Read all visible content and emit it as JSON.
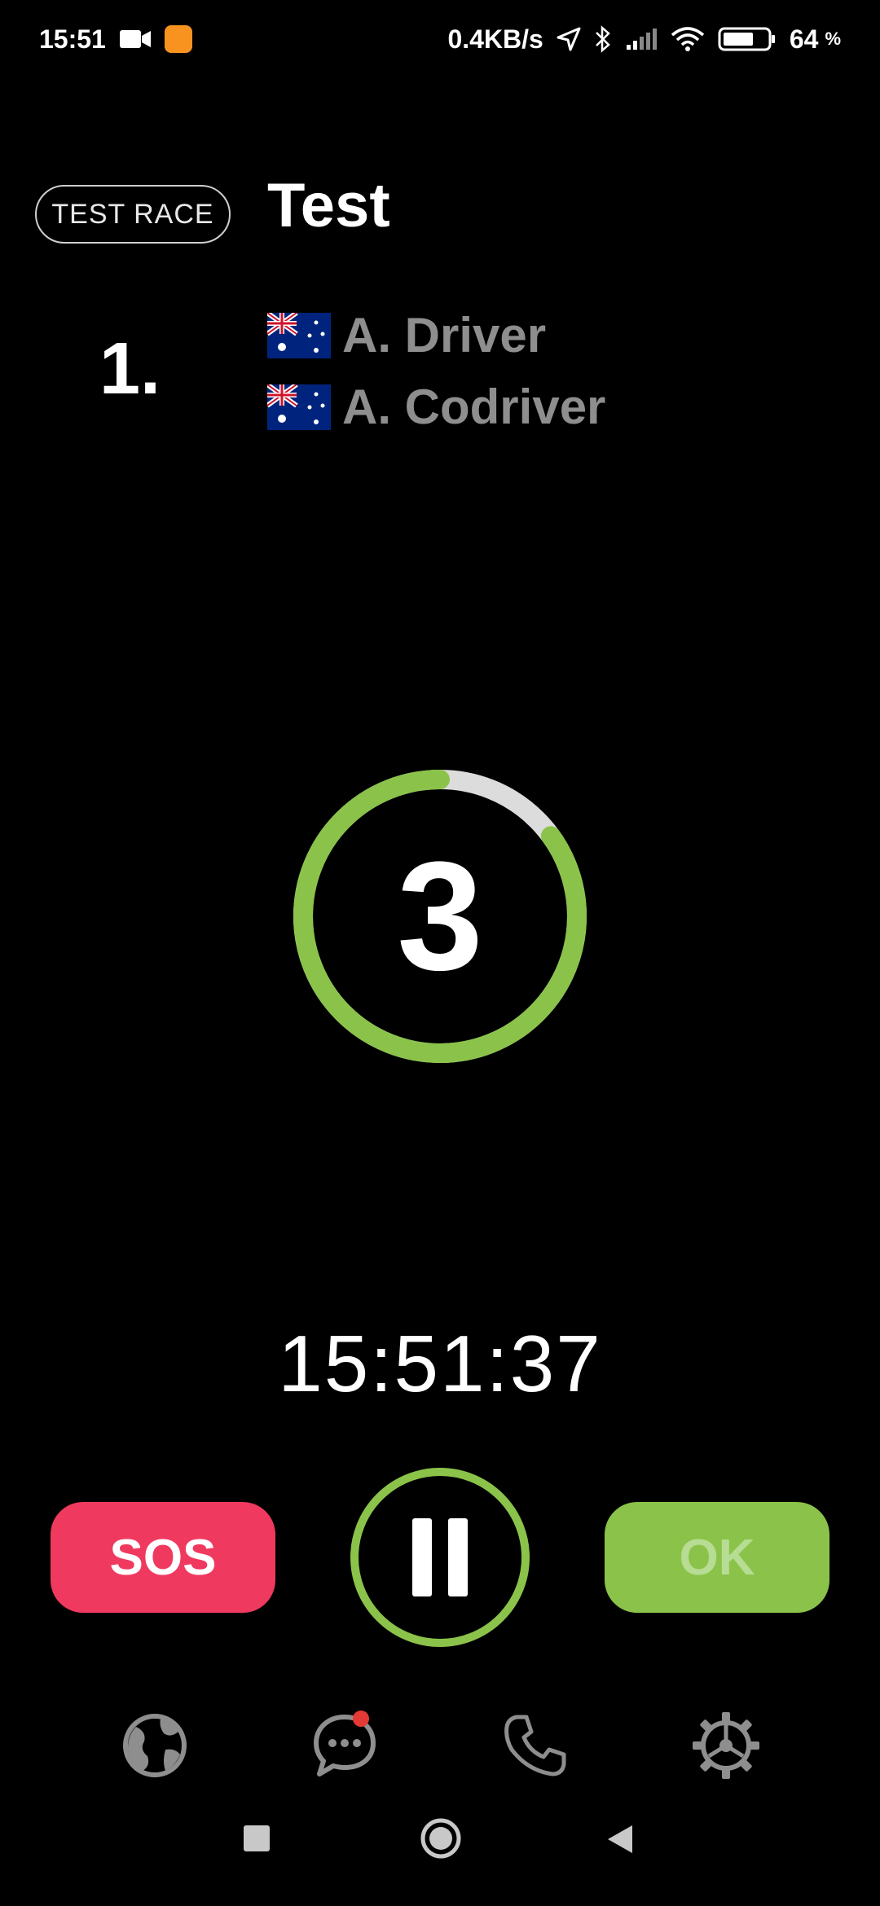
{
  "status_bar": {
    "time": "15:51",
    "network_speed": "0.4KB/s",
    "battery_percent": "64",
    "battery_sign": "%",
    "icons": [
      "video-camera-icon",
      "app-notification-icon",
      "location-arrow-icon",
      "bluetooth-icon",
      "signal-icon",
      "wifi-icon",
      "battery-icon"
    ]
  },
  "header": {
    "race_label": "TEST RACE",
    "race_title": "Test"
  },
  "entry": {
    "position": "1.",
    "crew": [
      {
        "name": "A. Driver",
        "flag": "australia-flag-icon"
      },
      {
        "name": "A. Codriver",
        "flag": "australia-flag-icon"
      }
    ]
  },
  "countdown": {
    "value": "3",
    "progress_fraction": 0.85,
    "ring_color": "#8bc34a",
    "track_color": "#dcdcdc"
  },
  "clock": {
    "time": "15:51:37"
  },
  "actions": {
    "sos_label": "SOS",
    "ok_label": "OK",
    "pause_icon": "pause-icon"
  },
  "bottom_nav": {
    "items": [
      "globe-icon",
      "chat-icon",
      "phone-icon",
      "settings-icon"
    ],
    "chat_has_notification": true
  },
  "colors": {
    "accent_green": "#8bc34a",
    "sos_red": "#f0395f",
    "crew_gray": "#8e8e8e"
  }
}
